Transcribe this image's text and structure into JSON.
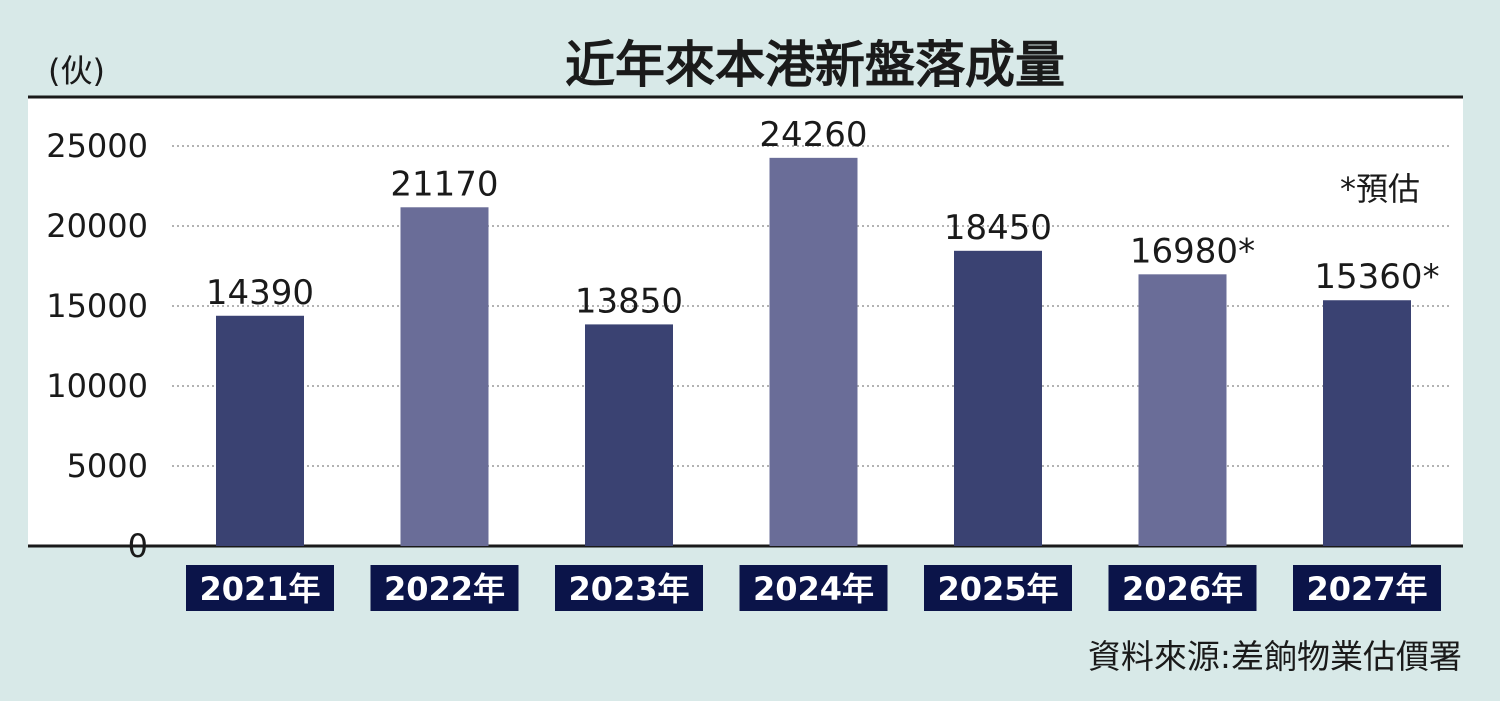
{
  "chart_data": {
    "type": "bar",
    "title": "近年來本港新盤落成量",
    "unit_label": "(伙)",
    "categories": [
      "2021年",
      "2022年",
      "2023年",
      "2024年",
      "2025年",
      "2026年",
      "2027年"
    ],
    "values": [
      14390,
      21170,
      13850,
      24260,
      18450,
      16980,
      15360
    ],
    "data_labels": [
      "14390",
      "21170",
      "13850",
      "24260",
      "18450",
      "16980*",
      "15360*"
    ],
    "yticks": [
      "0",
      "5000",
      "10000",
      "15000",
      "20000",
      "25000"
    ],
    "ylim": [
      0,
      28000
    ],
    "grid": true,
    "note": "*預估",
    "source": "資料來源:差餉物業估價署",
    "colors": {
      "background": "#d8e9e8",
      "plot_background": "#ffffff",
      "bar_dark": "#3a4272",
      "bar_light": "#6a6d98",
      "category_label_bg": "#0b1449",
      "grid": "#9a9a9a"
    },
    "bar_color_pattern": [
      "dark",
      "light",
      "dark",
      "light",
      "dark",
      "light",
      "dark"
    ]
  }
}
